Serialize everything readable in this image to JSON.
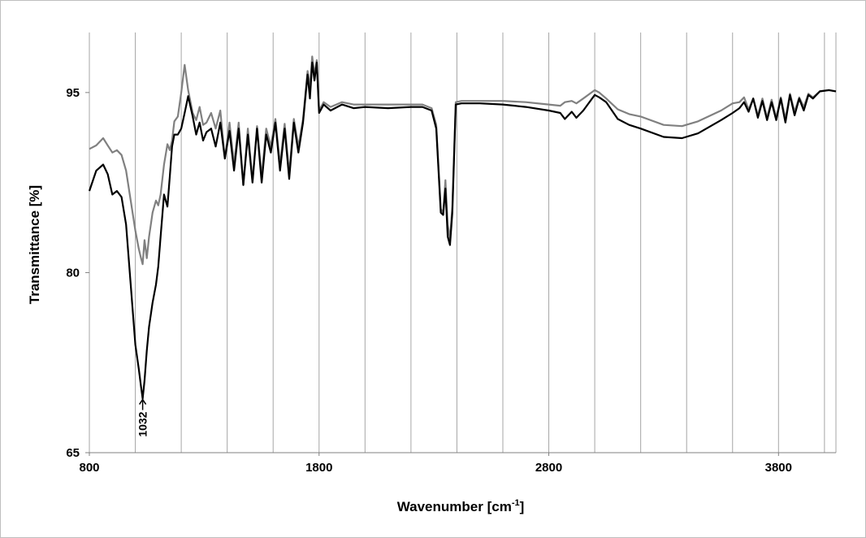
{
  "chart_data": {
    "type": "line",
    "title": "",
    "xlabel": "Wavenumber [cm",
    "xlabel_sup": "-1",
    "xlabel_tail": "]",
    "ylabel": "Transmittance [%]",
    "xlim": [
      800,
      4050
    ],
    "ylim": [
      65,
      100
    ],
    "xticks": [
      800,
      1800,
      2800,
      3800
    ],
    "yticks": [
      65,
      80,
      95
    ],
    "grid": "vertical",
    "legend": "none",
    "annotations": [
      {
        "text": "1032",
        "x": 1032,
        "y": 69.5
      }
    ],
    "series": [
      {
        "color": "#000000",
        "x": [
          800,
          830,
          860,
          880,
          900,
          920,
          940,
          960,
          980,
          1000,
          1015,
          1025,
          1032,
          1040,
          1050,
          1060,
          1075,
          1090,
          1100,
          1110,
          1125,
          1140,
          1150,
          1160,
          1170,
          1185,
          1200,
          1215,
          1230,
          1250,
          1265,
          1280,
          1295,
          1310,
          1330,
          1350,
          1370,
          1390,
          1410,
          1430,
          1450,
          1470,
          1490,
          1510,
          1530,
          1550,
          1570,
          1590,
          1610,
          1630,
          1650,
          1670,
          1690,
          1710,
          1730,
          1750,
          1760,
          1770,
          1780,
          1790,
          1800,
          1820,
          1850,
          1900,
          1950,
          2000,
          2100,
          2200,
          2250,
          2290,
          2310,
          2330,
          2340,
          2350,
          2360,
          2370,
          2380,
          2395,
          2420,
          2500,
          2600,
          2700,
          2800,
          2850,
          2870,
          2900,
          2920,
          2950,
          3000,
          3020,
          3050,
          3100,
          3150,
          3200,
          3300,
          3380,
          3450,
          3550,
          3600,
          3630,
          3650,
          3670,
          3690,
          3710,
          3730,
          3750,
          3770,
          3790,
          3810,
          3830,
          3850,
          3870,
          3890,
          3910,
          3930,
          3950,
          3980,
          4020,
          4050
        ],
        "y": [
          86.8,
          88.5,
          89,
          88.2,
          86.5,
          86.8,
          86.3,
          84,
          79,
          74,
          72,
          70.5,
          69.5,
          71,
          73.5,
          75.5,
          77.5,
          79,
          80.5,
          83,
          86.5,
          85.5,
          88,
          90.5,
          91.5,
          91.5,
          92,
          93.3,
          94.7,
          93,
          91.5,
          92.5,
          91,
          91.7,
          92,
          90.5,
          92.5,
          89.5,
          91.8,
          88.5,
          92,
          87.3,
          91.5,
          87.5,
          92,
          87.5,
          91.5,
          90,
          92.5,
          88.5,
          92,
          87.8,
          92.5,
          90,
          92.5,
          96.5,
          94.5,
          97.5,
          96,
          97.5,
          93.3,
          94,
          93.5,
          94,
          93.7,
          93.8,
          93.7,
          93.8,
          93.8,
          93.5,
          92,
          85,
          84.8,
          87,
          83,
          82.3,
          85,
          94,
          94.1,
          94.1,
          94,
          93.8,
          93.5,
          93.3,
          92.8,
          93.4,
          92.9,
          93.5,
          94.8,
          94.6,
          94.2,
          92.8,
          92.3,
          92,
          91.3,
          91.2,
          91.6,
          92.7,
          93.3,
          93.7,
          94.2,
          93.4,
          94.5,
          92.9,
          94.3,
          92.7,
          94.2,
          92.7,
          94.5,
          92.5,
          94.8,
          93.1,
          94.5,
          93.5,
          94.8,
          94.5,
          95.1,
          95.2,
          95.1
        ]
      },
      {
        "color": "#808080",
        "x": [
          800,
          830,
          860,
          880,
          900,
          920,
          940,
          960,
          980,
          1000,
          1015,
          1025,
          1032,
          1040,
          1050,
          1060,
          1075,
          1090,
          1100,
          1110,
          1125,
          1140,
          1150,
          1160,
          1170,
          1185,
          1200,
          1215,
          1230,
          1250,
          1265,
          1280,
          1295,
          1310,
          1330,
          1350,
          1370,
          1390,
          1410,
          1430,
          1450,
          1470,
          1490,
          1510,
          1530,
          1550,
          1570,
          1590,
          1610,
          1630,
          1650,
          1670,
          1690,
          1710,
          1730,
          1750,
          1760,
          1770,
          1780,
          1790,
          1800,
          1820,
          1850,
          1900,
          1950,
          2000,
          2100,
          2200,
          2250,
          2290,
          2310,
          2330,
          2340,
          2350,
          2360,
          2370,
          2380,
          2395,
          2420,
          2500,
          2600,
          2700,
          2800,
          2850,
          2870,
          2900,
          2920,
          2950,
          3000,
          3020,
          3050,
          3100,
          3150,
          3200,
          3300,
          3380,
          3450,
          3550,
          3600,
          3630,
          3650,
          3670,
          3690,
          3710,
          3730,
          3750,
          3770,
          3790,
          3810,
          3830,
          3850,
          3870,
          3890,
          3910,
          3930,
          3950,
          3980,
          4020,
          4050
        ],
        "y": [
          90.3,
          90.6,
          91.2,
          90.6,
          90,
          90.2,
          89.8,
          88.5,
          86,
          83.5,
          82,
          81.2,
          80.7,
          82.7,
          81.2,
          83,
          85,
          86,
          85.6,
          86.5,
          89,
          90.7,
          90.2,
          91,
          92.6,
          93,
          95,
          97.3,
          95.2,
          93.3,
          92.7,
          93.8,
          92.3,
          92.5,
          93.3,
          92,
          93.5,
          89.5,
          92.5,
          89,
          92.5,
          87.3,
          92,
          87.6,
          92.2,
          88,
          92,
          90.5,
          92.8,
          89,
          92.4,
          88.3,
          92.8,
          90.5,
          92.8,
          96.8,
          95.5,
          98,
          96.5,
          97.7,
          93.5,
          94.2,
          93.8,
          94.2,
          94,
          94,
          94,
          94,
          94,
          93.7,
          92.3,
          85.3,
          85,
          87.7,
          84,
          82.8,
          85.5,
          94.2,
          94.3,
          94.3,
          94.3,
          94.2,
          94,
          93.9,
          94.2,
          94.3,
          94.1,
          94.5,
          95.2,
          95,
          94.5,
          93.6,
          93.2,
          93,
          92.3,
          92.2,
          92.6,
          93.5,
          94.1,
          94.2,
          94.6,
          93.6,
          94.5,
          93.1,
          94.5,
          92.9,
          94.4,
          92.9,
          94.6,
          92.8,
          94.9,
          93.4,
          94.6,
          93.8,
          94.9,
          94.6,
          95.1,
          95.2,
          95.1
        ]
      }
    ]
  }
}
